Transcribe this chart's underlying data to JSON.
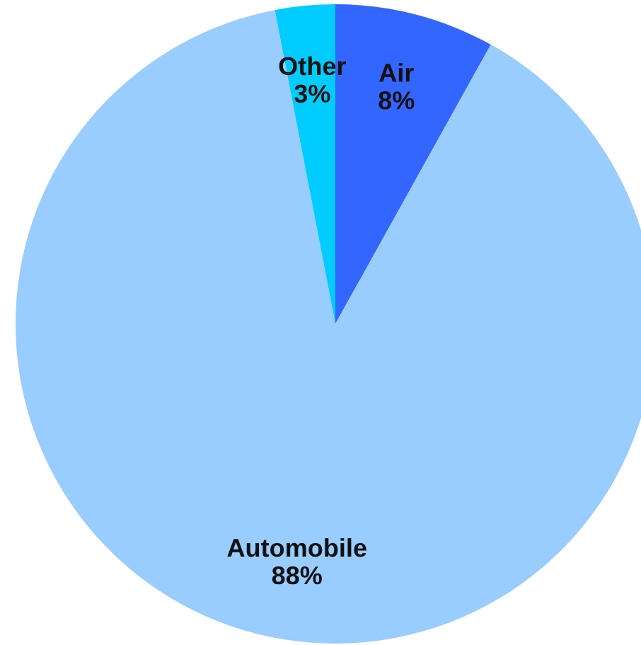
{
  "chart_data": {
    "type": "pie",
    "categories": [
      "Air",
      "Automobile",
      "Other"
    ],
    "values": [
      8,
      88,
      3
    ],
    "value_labels": [
      "8%",
      "88%",
      "3%"
    ],
    "colors": [
      "#3366ff",
      "#99ccff",
      "#00ccff"
    ]
  }
}
